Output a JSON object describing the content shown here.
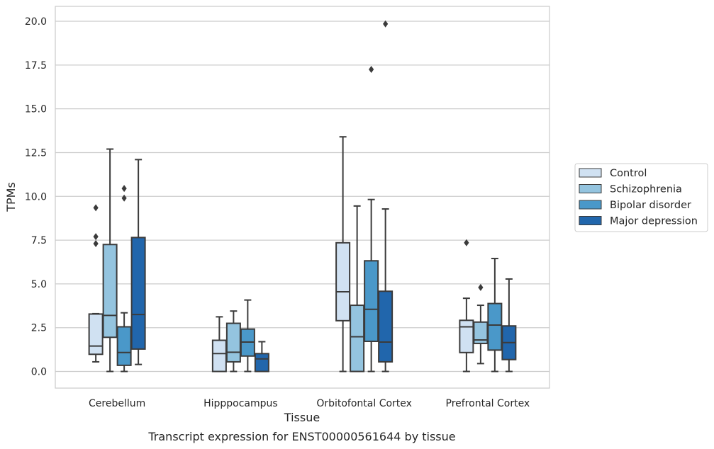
{
  "chart_data": {
    "type": "boxplot",
    "title": "Transcript expression for ENST00000561644 by tissue",
    "xlabel": "Tissue",
    "ylabel": "TPMs",
    "ylim": [
      -0.95,
      20.85
    ],
    "yticks": [
      "0.0",
      "2.5",
      "5.0",
      "7.5",
      "10.0",
      "12.5",
      "15.0",
      "17.5",
      "20.0"
    ],
    "grid": true,
    "legend_position": "right",
    "categories": [
      "Cerebellum",
      "Hipppocampus",
      "Orbitofontal Cortex",
      "Prefrontal Cortex"
    ],
    "series": [
      {
        "name": "Control",
        "color": "#d0e1f2",
        "boxes": [
          {
            "whislo": 0.55,
            "q1": 0.98,
            "med": 1.45,
            "q3": 3.28,
            "whishi": 3.3,
            "fliers": [
              7.3,
              7.7,
              9.35
            ]
          },
          {
            "whislo": 0.0,
            "q1": 0.0,
            "med": 1.02,
            "q3": 1.78,
            "whishi": 3.12,
            "fliers": []
          },
          {
            "whislo": 0.0,
            "q1": 2.9,
            "med": 4.55,
            "q3": 7.35,
            "whishi": 13.4,
            "fliers": []
          },
          {
            "whislo": 0.0,
            "q1": 1.08,
            "med": 2.55,
            "q3": 2.92,
            "whishi": 4.18,
            "fliers": [
              7.35
            ]
          }
        ]
      },
      {
        "name": "Schizophrenia",
        "color": "#94c4df",
        "boxes": [
          {
            "whislo": 0.0,
            "q1": 1.95,
            "med": 3.2,
            "q3": 7.25,
            "whishi": 12.7,
            "fliers": []
          },
          {
            "whislo": 0.0,
            "q1": 0.55,
            "med": 1.1,
            "q3": 2.75,
            "whishi": 3.45,
            "fliers": []
          },
          {
            "whislo": 0.0,
            "q1": 0.0,
            "med": 1.98,
            "q3": 3.78,
            "whishi": 9.45,
            "fliers": []
          },
          {
            "whislo": 0.45,
            "q1": 1.6,
            "med": 1.8,
            "q3": 2.82,
            "whishi": 3.78,
            "fliers": [
              4.8
            ]
          }
        ]
      },
      {
        "name": "Bipolar disorder",
        "color": "#4a98c9",
        "boxes": [
          {
            "whislo": 0.0,
            "q1": 0.35,
            "med": 1.08,
            "q3": 2.55,
            "whishi": 3.35,
            "fliers": [
              9.9,
              10.45
            ]
          },
          {
            "whislo": 0.0,
            "q1": 0.88,
            "med": 1.68,
            "q3": 2.42,
            "whishi": 4.08,
            "fliers": []
          },
          {
            "whislo": 0.0,
            "q1": 1.72,
            "med": 3.55,
            "q3": 6.32,
            "whishi": 9.82,
            "fliers": [
              17.25
            ]
          },
          {
            "whislo": 0.0,
            "q1": 1.22,
            "med": 2.65,
            "q3": 3.88,
            "whishi": 6.45,
            "fliers": []
          }
        ]
      },
      {
        "name": "Major depression",
        "color": "#2166ac",
        "boxes": [
          {
            "whislo": 0.4,
            "q1": 1.28,
            "med": 3.25,
            "q3": 7.65,
            "whishi": 12.1,
            "fliers": []
          },
          {
            "whislo": 0.0,
            "q1": 0.0,
            "med": 0.72,
            "q3": 1.02,
            "whishi": 1.7,
            "fliers": []
          },
          {
            "whislo": 0.0,
            "q1": 0.55,
            "med": 1.68,
            "q3": 4.58,
            "whishi": 9.28,
            "fliers": [
              19.85
            ]
          },
          {
            "whislo": 0.0,
            "q1": 0.68,
            "med": 1.65,
            "q3": 2.6,
            "whishi": 5.28,
            "fliers": []
          }
        ]
      }
    ]
  }
}
